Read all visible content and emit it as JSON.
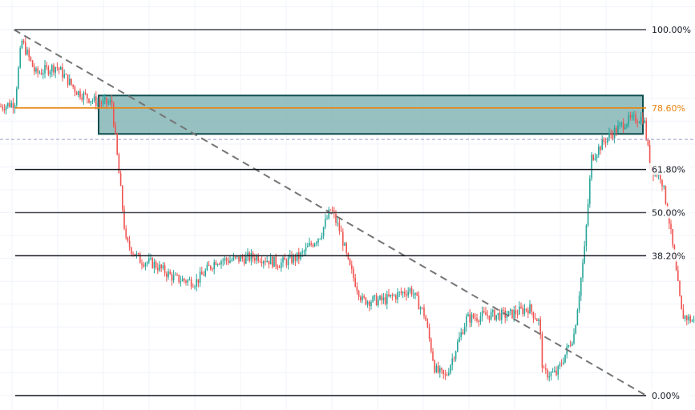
{
  "chart_data": {
    "type": "candlestick",
    "title": "",
    "xlabel": "",
    "ylabel": "",
    "grid": true,
    "y_scale": "fib_fraction",
    "ylim": [
      -0.02,
      1.075
    ],
    "fib_levels": [
      {
        "level": 1.0,
        "label": "100.00%",
        "color": "#434651"
      },
      {
        "level": 0.786,
        "label": "78.60%",
        "color": "#e8820c"
      },
      {
        "level": 0.618,
        "label": "61.80%",
        "color": "#131722"
      },
      {
        "level": 0.5,
        "label": "50.00%",
        "color": "#434651"
      },
      {
        "level": 0.382,
        "label": "38.20%",
        "color": "#131722"
      },
      {
        "level": 0.0,
        "label": "0.00%",
        "color": "#131722"
      }
    ],
    "zone": {
      "low": 0.715,
      "high": 0.82,
      "color": "#7aaeae",
      "border": "#0e4e4e"
    },
    "reference_line": {
      "level": 0.7,
      "style": "dashed",
      "color": "#9a9acb"
    },
    "trend_line": {
      "from": {
        "x": 0.02,
        "y": 1.0
      },
      "to": {
        "x": 0.93,
        "y": 0.0
      },
      "style": "dashed",
      "color": "#757575"
    },
    "price_path": [
      {
        "x": 0.0,
        "y": 0.79
      },
      {
        "x": 0.02,
        "y": 0.8
      },
      {
        "x": 0.03,
        "y": 0.97
      },
      {
        "x": 0.05,
        "y": 0.88
      },
      {
        "x": 0.08,
        "y": 0.9
      },
      {
        "x": 0.11,
        "y": 0.83
      },
      {
        "x": 0.14,
        "y": 0.8
      },
      {
        "x": 0.16,
        "y": 0.8
      },
      {
        "x": 0.165,
        "y": 0.7
      },
      {
        "x": 0.18,
        "y": 0.42
      },
      {
        "x": 0.2,
        "y": 0.37
      },
      {
        "x": 0.22,
        "y": 0.36
      },
      {
        "x": 0.25,
        "y": 0.32
      },
      {
        "x": 0.28,
        "y": 0.31
      },
      {
        "x": 0.31,
        "y": 0.37
      },
      {
        "x": 0.33,
        "y": 0.37
      },
      {
        "x": 0.37,
        "y": 0.38
      },
      {
        "x": 0.4,
        "y": 0.36
      },
      {
        "x": 0.43,
        "y": 0.38
      },
      {
        "x": 0.46,
        "y": 0.44
      },
      {
        "x": 0.475,
        "y": 0.51
      },
      {
        "x": 0.49,
        "y": 0.44
      },
      {
        "x": 0.5,
        "y": 0.36
      },
      {
        "x": 0.52,
        "y": 0.26
      },
      {
        "x": 0.55,
        "y": 0.26
      },
      {
        "x": 0.59,
        "y": 0.29
      },
      {
        "x": 0.61,
        "y": 0.22
      },
      {
        "x": 0.625,
        "y": 0.07
      },
      {
        "x": 0.64,
        "y": 0.05
      },
      {
        "x": 0.67,
        "y": 0.21
      },
      {
        "x": 0.7,
        "y": 0.22
      },
      {
        "x": 0.73,
        "y": 0.22
      },
      {
        "x": 0.76,
        "y": 0.24
      },
      {
        "x": 0.775,
        "y": 0.2
      },
      {
        "x": 0.78,
        "y": 0.06
      },
      {
        "x": 0.8,
        "y": 0.06
      },
      {
        "x": 0.825,
        "y": 0.17
      },
      {
        "x": 0.84,
        "y": 0.4
      },
      {
        "x": 0.85,
        "y": 0.65
      },
      {
        "x": 0.87,
        "y": 0.7
      },
      {
        "x": 0.9,
        "y": 0.75
      },
      {
        "x": 0.925,
        "y": 0.76
      },
      {
        "x": 0.935,
        "y": 0.62
      },
      {
        "x": 0.95,
        "y": 0.6
      },
      {
        "x": 0.96,
        "y": 0.5
      },
      {
        "x": 0.98,
        "y": 0.22
      },
      {
        "x": 1.0,
        "y": 0.2
      }
    ]
  }
}
